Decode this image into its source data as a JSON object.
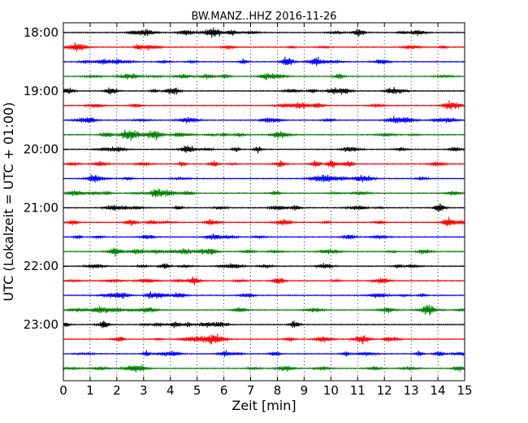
{
  "chart_data": {
    "type": "line",
    "title": "BW.MANZ..HHZ 2016-11-26",
    "xlabel": "Zeit  [min]",
    "ylabel": "UTC (Lokalzeit = UTC + 01:00)",
    "xlim": [
      0,
      15
    ],
    "x_ticks": [
      "0",
      "1",
      "2",
      "3",
      "4",
      "5",
      "6",
      "7",
      "8",
      "9",
      "10",
      "11",
      "12",
      "13",
      "14",
      "15"
    ],
    "y_ticks": [
      "18:00",
      "19:00",
      "20:00",
      "21:00",
      "22:00",
      "23:00"
    ],
    "grid": "vertical dotted at each minute",
    "trace_colors": [
      "#000000",
      "#ff0000",
      "#0000ff",
      "#008000"
    ],
    "minutes_per_trace": 15,
    "series": [
      {
        "start": "18:00",
        "color": "#000000"
      },
      {
        "start": "18:15",
        "color": "#ff0000"
      },
      {
        "start": "18:30",
        "color": "#0000ff"
      },
      {
        "start": "18:45",
        "color": "#008000"
      },
      {
        "start": "19:00",
        "color": "#000000"
      },
      {
        "start": "19:15",
        "color": "#ff0000"
      },
      {
        "start": "19:30",
        "color": "#0000ff"
      },
      {
        "start": "19:45",
        "color": "#008000"
      },
      {
        "start": "20:00",
        "color": "#000000"
      },
      {
        "start": "20:15",
        "color": "#ff0000"
      },
      {
        "start": "20:30",
        "color": "#0000ff"
      },
      {
        "start": "20:45",
        "color": "#008000"
      },
      {
        "start": "21:00",
        "color": "#000000"
      },
      {
        "start": "21:15",
        "color": "#ff0000"
      },
      {
        "start": "21:30",
        "color": "#0000ff"
      },
      {
        "start": "21:45",
        "color": "#008000"
      },
      {
        "start": "22:00",
        "color": "#000000"
      },
      {
        "start": "22:15",
        "color": "#ff0000"
      },
      {
        "start": "22:30",
        "color": "#0000ff"
      },
      {
        "start": "22:45",
        "color": "#008000"
      },
      {
        "start": "23:00",
        "color": "#000000"
      },
      {
        "start": "23:15",
        "color": "#ff0000"
      },
      {
        "start": "23:30",
        "color": "#0000ff"
      },
      {
        "start": "23:45",
        "color": "#008000"
      }
    ]
  }
}
